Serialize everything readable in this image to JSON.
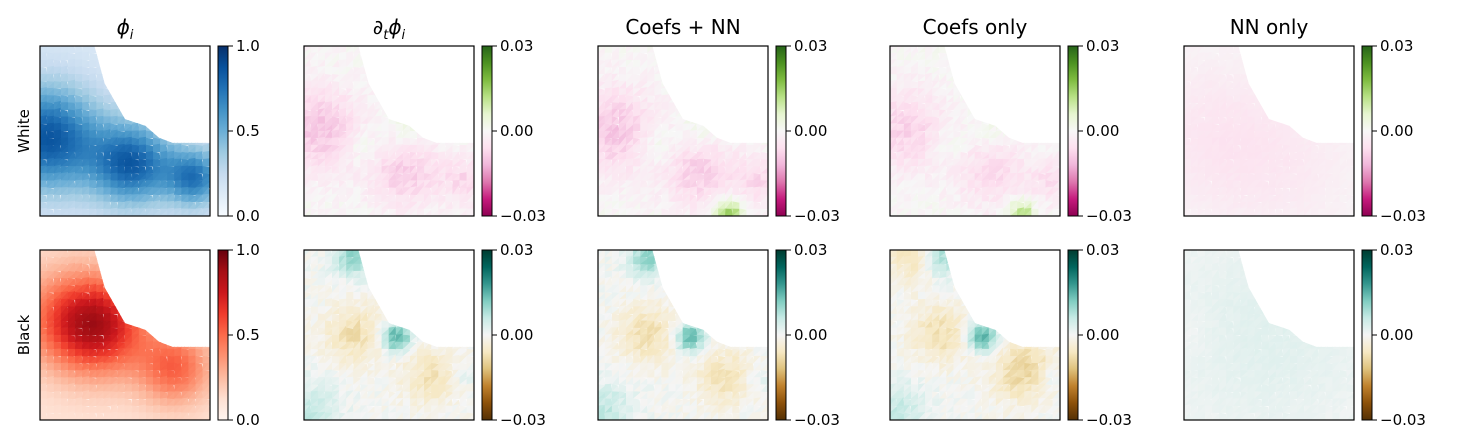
{
  "chart_data": {
    "type": "heatmap",
    "columns": [
      {
        "title": "ϕ_i",
        "title_main": "ϕ",
        "title_sub": "i"
      },
      {
        "title": "∂_tϕ_i",
        "title_main": "∂",
        "title_sub_t": "t",
        "title_main2": "ϕ",
        "title_sub": "i"
      },
      {
        "title": "Coefs + NN"
      },
      {
        "title": "Coefs only"
      },
      {
        "title": "NN only"
      }
    ],
    "rows": [
      "White",
      "Black"
    ],
    "colorbars": [
      {
        "row": "White",
        "column": 0,
        "colormap": "Blues",
        "range": [
          0,
          1
        ],
        "ticks": [
          "1.0",
          "0.5",
          "0.0"
        ]
      },
      {
        "row": "White",
        "column": 1,
        "colormap": "PiYG",
        "range": [
          -0.03,
          0.03
        ],
        "ticks": [
          "0.03",
          "0.00",
          "−0.03"
        ]
      },
      {
        "row": "White",
        "column": 2,
        "colormap": "PiYG",
        "range": [
          -0.03,
          0.03
        ],
        "ticks": [
          "0.03",
          "0.00",
          "−0.03"
        ]
      },
      {
        "row": "White",
        "column": 3,
        "colormap": "PiYG",
        "range": [
          -0.03,
          0.03
        ],
        "ticks": [
          "0.03",
          "0.00",
          "−0.03"
        ]
      },
      {
        "row": "White",
        "column": 4,
        "colormap": "PiYG",
        "range": [
          -0.03,
          0.03
        ],
        "ticks": [
          "0.03",
          "0.00",
          "−0.03"
        ]
      },
      {
        "row": "Black",
        "column": 0,
        "colormap": "Reds",
        "range": [
          0,
          1
        ],
        "ticks": [
          "1.0",
          "0.5",
          "0.0"
        ]
      },
      {
        "row": "Black",
        "column": 1,
        "colormap": "BrBG",
        "range": [
          -0.03,
          0.03
        ],
        "ticks": [
          "0.03",
          "0.00",
          "−0.03"
        ]
      },
      {
        "row": "Black",
        "column": 2,
        "colormap": "BrBG",
        "range": [
          -0.03,
          0.03
        ],
        "ticks": [
          "0.03",
          "0.00",
          "−0.03"
        ]
      },
      {
        "row": "Black",
        "column": 3,
        "colormap": "BrBG",
        "range": [
          -0.03,
          0.03
        ],
        "ticks": [
          "0.03",
          "0.00",
          "−0.03"
        ]
      },
      {
        "row": "Black",
        "column": 4,
        "colormap": "BrBG",
        "range": [
          -0.03,
          0.03
        ],
        "ticks": [
          "0.03",
          "0.00",
          "−0.03"
        ]
      }
    ],
    "domain_boundary_note_free": true,
    "grid": false,
    "axes_ticks": false
  }
}
